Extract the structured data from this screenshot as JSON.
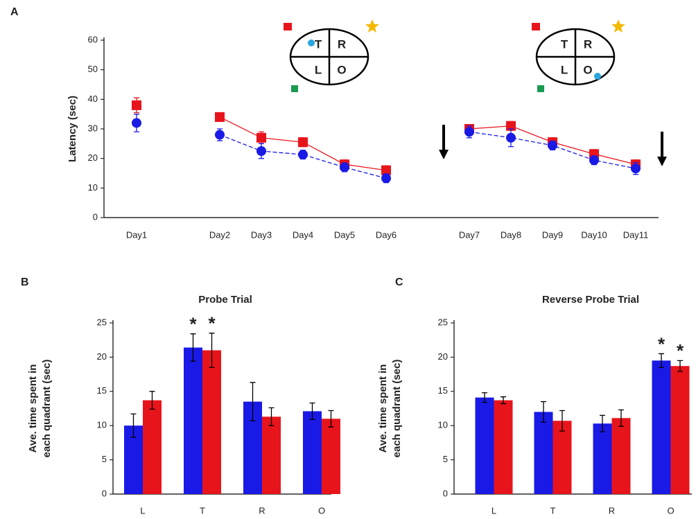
{
  "panel_labels": [
    "A",
    "B",
    "C"
  ],
  "insets": [
    {
      "quadrants": [
        "T",
        "R",
        "L",
        "O"
      ]
    },
    {
      "quadrants": [
        "T",
        "R",
        "L",
        "O"
      ]
    }
  ],
  "chart_data": [
    {
      "type": "line",
      "ylabel": "Latency (sec)",
      "categories": [
        "Day1",
        null,
        "Day2",
        "Day3",
        "Day4",
        "Day5",
        "Day6",
        null,
        "Day7",
        "Day8",
        "Day9",
        "Day10",
        "Day11"
      ],
      "ylim": [
        0,
        60
      ],
      "yticks": [
        0,
        10,
        20,
        30,
        40,
        50,
        60
      ],
      "series": [
        {
          "color": "#e8141c",
          "marker": "square",
          "values": [
            38,
            null,
            34,
            27,
            25.5,
            18,
            16,
            null,
            30,
            31,
            25.5,
            21.5,
            18
          ],
          "errors": [
            2.5,
            null,
            1.5,
            2,
            1.5,
            1.5,
            1.5,
            null,
            1.5,
            1.5,
            1.5,
            1.5,
            1.5
          ]
        },
        {
          "color": "#1a1ae6",
          "marker": "circle",
          "values": [
            32,
            null,
            28,
            22.5,
            21.3,
            17,
            13.3,
            null,
            29,
            27,
            24.4,
            19.4,
            16.6
          ],
          "errors": [
            3,
            null,
            2,
            2.5,
            1.5,
            1.5,
            1.5,
            null,
            2,
            3,
            1.5,
            1.5,
            2
          ]
        }
      ]
    },
    {
      "type": "bar",
      "title": "Probe Trial",
      "ylabel": [
        "Ave. time spent in",
        "each quadrant (sec)"
      ],
      "categories": [
        "L",
        "T",
        "R",
        "O"
      ],
      "ylim": [
        0,
        25
      ],
      "yticks": [
        0,
        5,
        10,
        15,
        20,
        25
      ],
      "series": [
        {
          "color": "#1a1ae6",
          "values": [
            10,
            21.4,
            13.5,
            12.1
          ],
          "errors": [
            1.7,
            2,
            2.8,
            1.2
          ]
        },
        {
          "color": "#e8141c",
          "values": [
            13.7,
            21,
            11.3,
            11
          ],
          "errors": [
            1.3,
            2.5,
            1.3,
            1.2
          ]
        }
      ],
      "annotations": [
        "*",
        "*"
      ]
    },
    {
      "type": "bar",
      "title": "Reverse Probe Trial",
      "ylabel": [
        "Ave. time spent in",
        "each quadrant (sec)"
      ],
      "categories": [
        "L",
        "T",
        "R",
        "O"
      ],
      "ylim": [
        0,
        25
      ],
      "yticks": [
        0,
        5,
        10,
        15,
        20,
        25
      ],
      "series": [
        {
          "color": "#1a1ae6",
          "values": [
            14.1,
            12,
            10.3,
            19.5
          ],
          "errors": [
            0.7,
            1.5,
            1.2,
            1
          ]
        },
        {
          "color": "#e8141c",
          "values": [
            13.7,
            10.7,
            11.1,
            18.7
          ],
          "errors": [
            0.5,
            1.5,
            1.2,
            0.8
          ]
        }
      ],
      "annotations": [
        "*",
        "*"
      ]
    }
  ]
}
